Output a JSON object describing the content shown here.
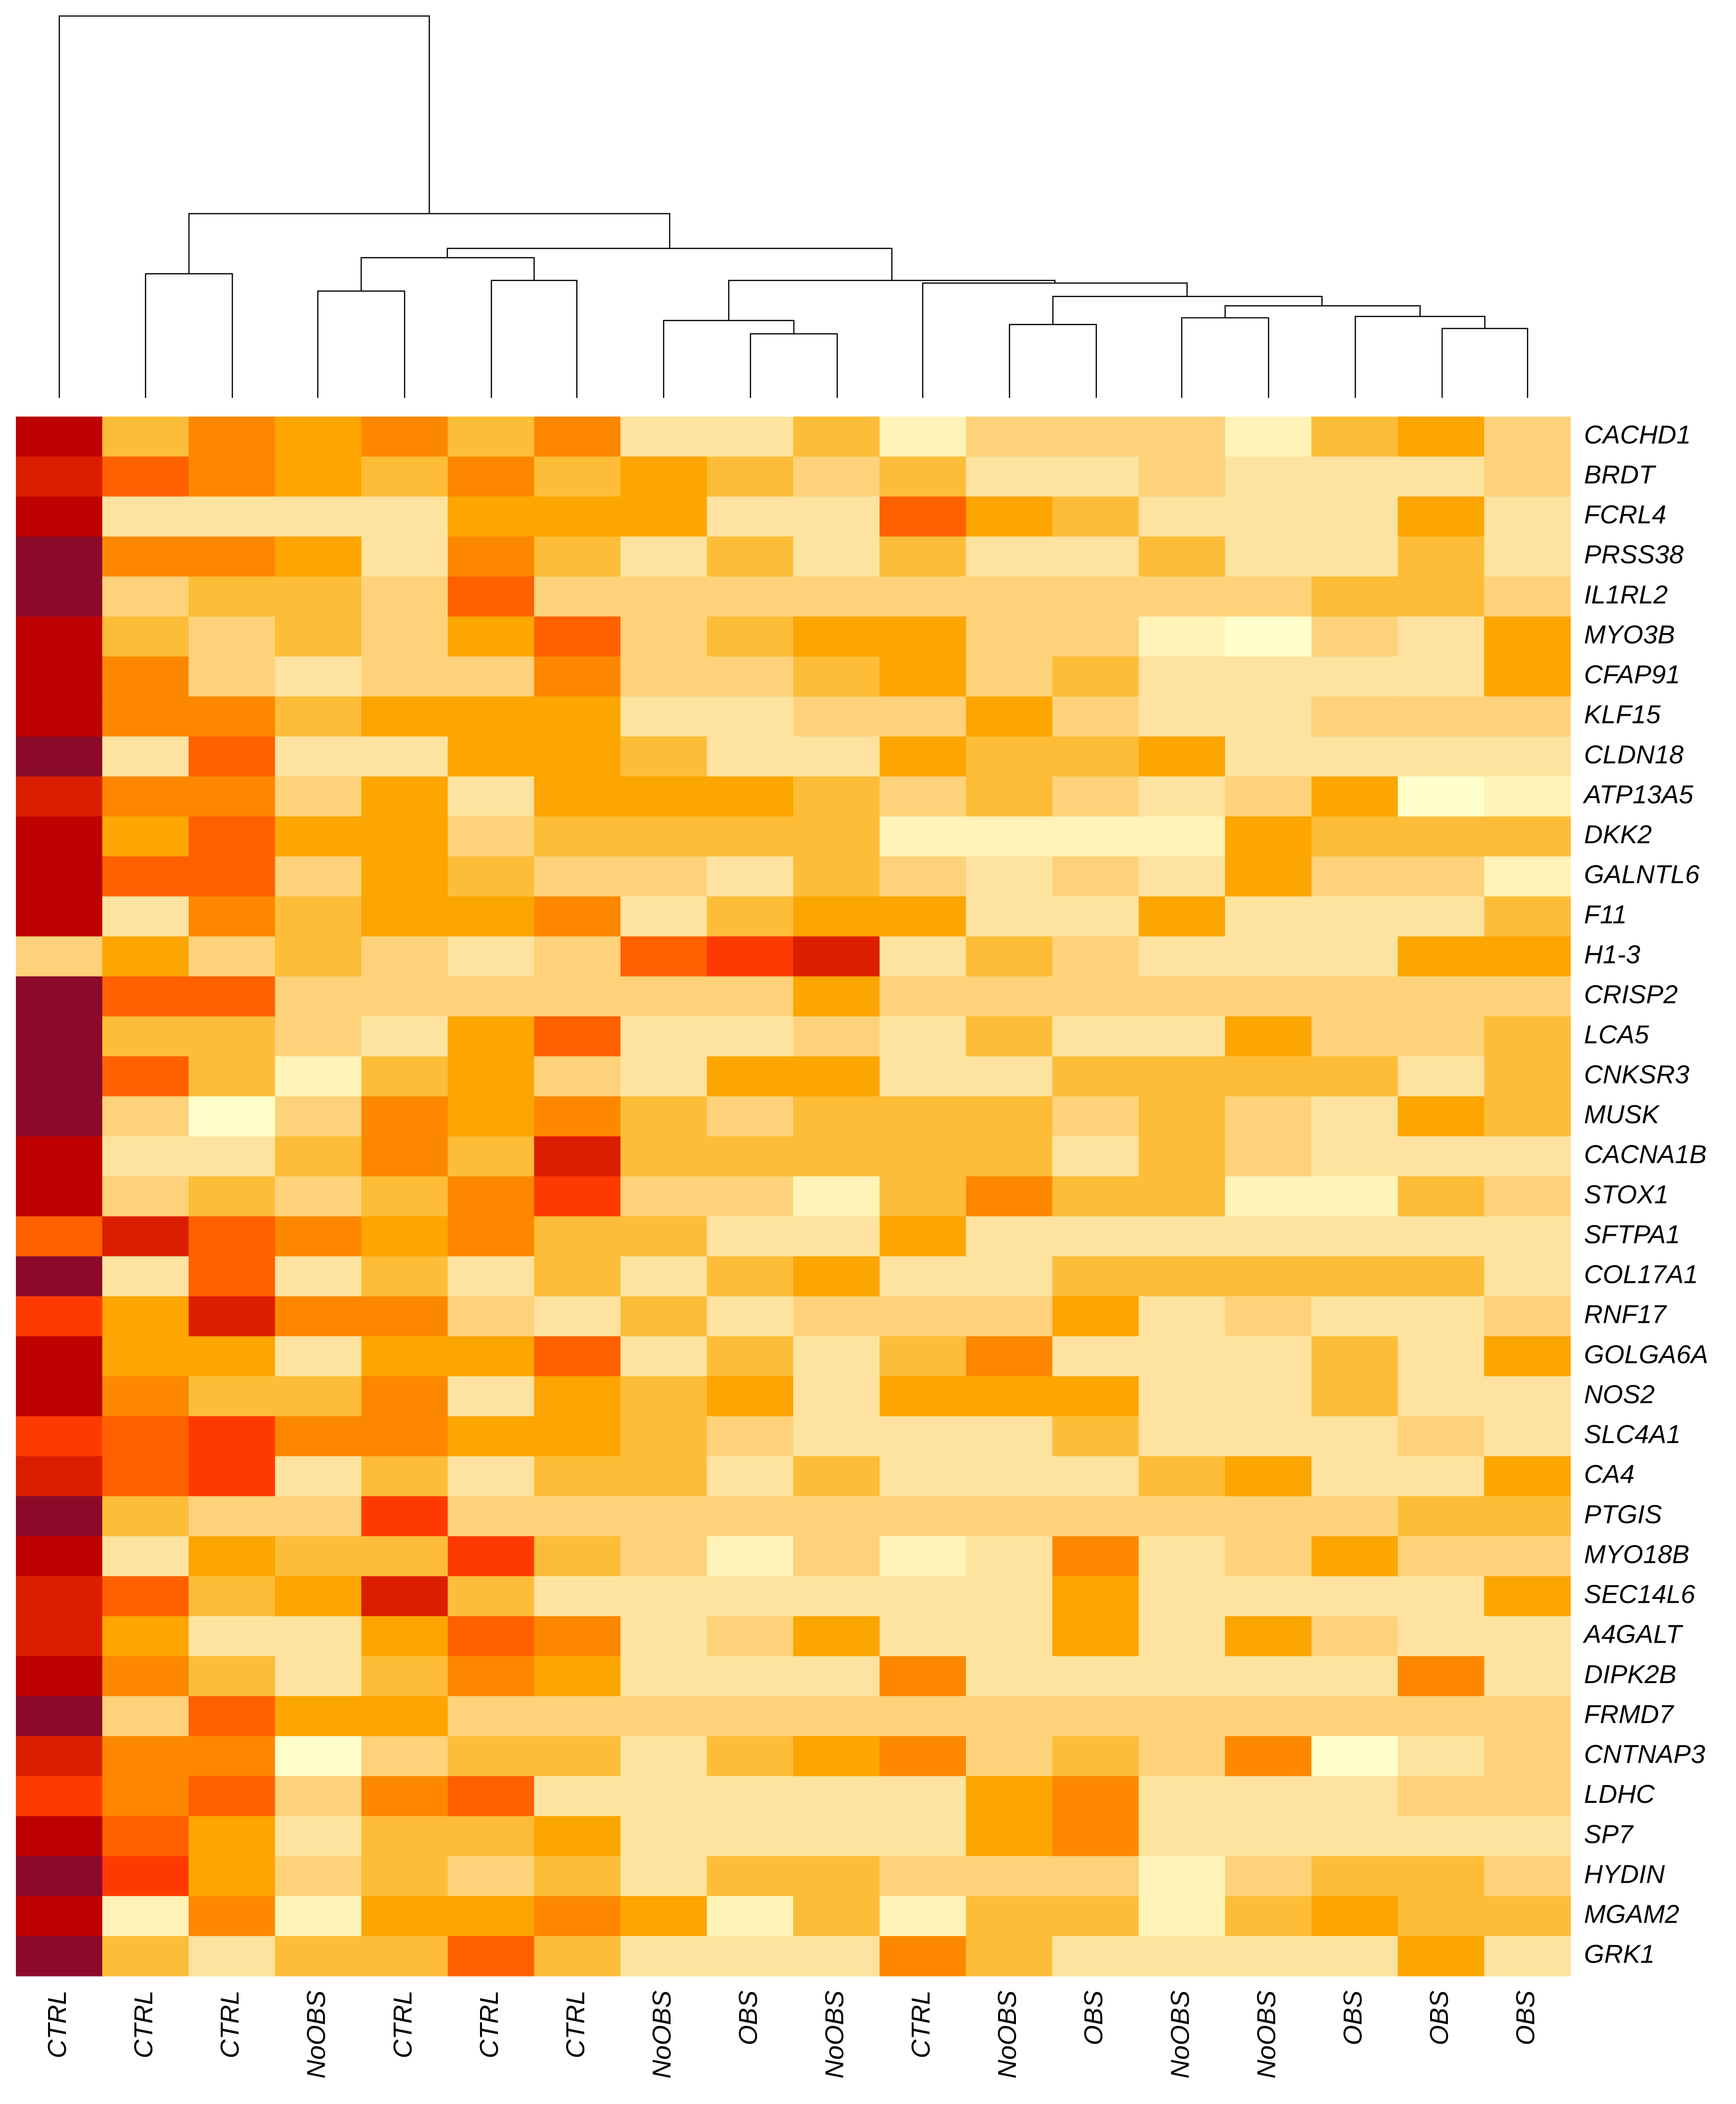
{
  "chart_data": {
    "type": "heatmap",
    "columns": [
      "CTRL",
      "CTRL",
      "CTRL",
      "NoOBS",
      "CTRL",
      "CTRL",
      "CTRL",
      "NoOBS",
      "OBS",
      "NoOBS",
      "CTRL",
      "NoOBS",
      "OBS",
      "NoOBS",
      "NoOBS",
      "OBS",
      "OBS",
      "OBS"
    ],
    "rows": [
      "CACHD1",
      "BRDT",
      "FCRL4",
      "PRSS38",
      "IL1RL2",
      "MYO3B",
      "CFAP91",
      "KLF15",
      "CLDN18",
      "ATP13A5",
      "DKK2",
      "GALNTL6",
      "F11",
      "H1-3",
      "CRISP2",
      "LCA5",
      "CNKSR3",
      "MUSK",
      "CACNA1B",
      "STOX1",
      "SFTPA1",
      "COL17A1",
      "RNF17",
      "GOLGA6A",
      "NOS2",
      "SLC4A1",
      "CA4",
      "PTGIS",
      "MYO18B",
      "SEC14L6",
      "A4GALT",
      "DIPK2B",
      "FRMD7",
      "CNTNAP3",
      "LDHC",
      "SP7",
      "HYDIN",
      "MGAM2",
      "GRK1"
    ],
    "colors": [
      "#FFFFCC",
      "#FFF3B8",
      "#FDE39F",
      "#FDD27A",
      "#FDBD38",
      "#FDA500",
      "#FD8800",
      "#FF6000",
      "#FF3A00",
      "#DC1E00",
      "#BE0000",
      "#8B0A2A"
    ],
    "values": [
      [
        11,
        5,
        7,
        6,
        7,
        5,
        7,
        3,
        3,
        5,
        2,
        4,
        4,
        4,
        2,
        5,
        6,
        4
      ],
      [
        10,
        8,
        7,
        6,
        5,
        7,
        5,
        6,
        5,
        4,
        5,
        3,
        3,
        4,
        3,
        3,
        3,
        4
      ],
      [
        11,
        3,
        3,
        3,
        3,
        6,
        6,
        6,
        3,
        3,
        8,
        6,
        5,
        3,
        3,
        3,
        6,
        3
      ],
      [
        12,
        7,
        7,
        6,
        3,
        7,
        5,
        3,
        5,
        3,
        5,
        3,
        3,
        5,
        3,
        3,
        5,
        3
      ],
      [
        12,
        4,
        5,
        5,
        4,
        8,
        4,
        4,
        4,
        4,
        4,
        4,
        4,
        4,
        4,
        5,
        5,
        4
      ],
      [
        11,
        5,
        4,
        5,
        4,
        6,
        8,
        4,
        5,
        6,
        6,
        4,
        4,
        2,
        1,
        4,
        3,
        6
      ],
      [
        11,
        7,
        4,
        3,
        4,
        4,
        7,
        4,
        4,
        5,
        6,
        4,
        5,
        3,
        3,
        3,
        3,
        6
      ],
      [
        11,
        7,
        7,
        5,
        6,
        6,
        6,
        3,
        3,
        4,
        4,
        6,
        4,
        3,
        3,
        4,
        4,
        4
      ],
      [
        12,
        3,
        8,
        3,
        3,
        6,
        6,
        5,
        3,
        3,
        6,
        5,
        5,
        6,
        3,
        3,
        3,
        3
      ],
      [
        10,
        7,
        7,
        4,
        6,
        3,
        6,
        6,
        6,
        5,
        4,
        5,
        4,
        3,
        4,
        6,
        1,
        2
      ],
      [
        11,
        6,
        8,
        6,
        6,
        4,
        5,
        5,
        5,
        5,
        2,
        2,
        2,
        2,
        6,
        5,
        5,
        5
      ],
      [
        11,
        8,
        8,
        4,
        6,
        5,
        4,
        4,
        3,
        5,
        4,
        3,
        4,
        3,
        6,
        4,
        4,
        2
      ],
      [
        11,
        3,
        7,
        5,
        6,
        6,
        7,
        3,
        5,
        6,
        6,
        3,
        3,
        6,
        3,
        3,
        3,
        5
      ],
      [
        4,
        6,
        4,
        5,
        4,
        3,
        4,
        8,
        9,
        10,
        3,
        5,
        4,
        3,
        3,
        3,
        6,
        6
      ],
      [
        12,
        8,
        8,
        4,
        4,
        4,
        4,
        4,
        4,
        6,
        4,
        4,
        4,
        4,
        4,
        4,
        4,
        4
      ],
      [
        12,
        5,
        5,
        4,
        3,
        6,
        8,
        3,
        3,
        4,
        3,
        5,
        3,
        3,
        6,
        4,
        4,
        5
      ],
      [
        12,
        8,
        5,
        2,
        5,
        6,
        4,
        3,
        6,
        6,
        3,
        3,
        5,
        5,
        5,
        5,
        3,
        5
      ],
      [
        12,
        4,
        1,
        4,
        7,
        6,
        7,
        5,
        4,
        5,
        5,
        5,
        4,
        5,
        4,
        3,
        6,
        5
      ],
      [
        11,
        3,
        3,
        5,
        7,
        5,
        10,
        5,
        5,
        5,
        5,
        5,
        3,
        5,
        4,
        3,
        3,
        3
      ],
      [
        11,
        4,
        5,
        4,
        5,
        7,
        9,
        4,
        4,
        2,
        5,
        7,
        5,
        5,
        2,
        2,
        5,
        4
      ],
      [
        8,
        10,
        8,
        7,
        6,
        7,
        5,
        5,
        3,
        3,
        6,
        3,
        3,
        3,
        3,
        3,
        3,
        3
      ],
      [
        12,
        3,
        8,
        3,
        5,
        3,
        5,
        3,
        5,
        6,
        3,
        3,
        5,
        5,
        5,
        5,
        5,
        3
      ],
      [
        9,
        6,
        10,
        7,
        7,
        4,
        3,
        5,
        3,
        4,
        4,
        4,
        6,
        3,
        4,
        3,
        3,
        4
      ],
      [
        11,
        6,
        6,
        3,
        6,
        6,
        8,
        3,
        5,
        3,
        5,
        7,
        3,
        3,
        3,
        5,
        3,
        6
      ],
      [
        11,
        7,
        5,
        5,
        7,
        3,
        6,
        5,
        6,
        3,
        6,
        6,
        6,
        3,
        3,
        5,
        3,
        3
      ],
      [
        9,
        8,
        9,
        7,
        7,
        6,
        6,
        5,
        4,
        3,
        3,
        3,
        5,
        3,
        3,
        3,
        4,
        3
      ],
      [
        10,
        8,
        9,
        3,
        5,
        3,
        5,
        5,
        3,
        5,
        3,
        3,
        3,
        5,
        6,
        3,
        3,
        6
      ],
      [
        12,
        5,
        4,
        4,
        9,
        4,
        4,
        4,
        4,
        4,
        4,
        4,
        4,
        4,
        4,
        4,
        5,
        5
      ],
      [
        11,
        3,
        6,
        5,
        5,
        9,
        5,
        4,
        2,
        4,
        2,
        3,
        7,
        3,
        4,
        6,
        4,
        4
      ],
      [
        10,
        8,
        5,
        6,
        10,
        5,
        3,
        3,
        3,
        3,
        3,
        3,
        6,
        3,
        3,
        3,
        3,
        6
      ],
      [
        10,
        6,
        3,
        3,
        6,
        8,
        7,
        3,
        4,
        6,
        3,
        3,
        6,
        3,
        6,
        4,
        3,
        3
      ],
      [
        11,
        7,
        5,
        3,
        5,
        7,
        6,
        3,
        3,
        3,
        7,
        3,
        3,
        3,
        3,
        3,
        7,
        3
      ],
      [
        12,
        4,
        8,
        6,
        6,
        4,
        4,
        4,
        4,
        4,
        4,
        4,
        4,
        4,
        4,
        4,
        4,
        4
      ],
      [
        10,
        7,
        7,
        1,
        4,
        5,
        5,
        3,
        5,
        6,
        7,
        4,
        5,
        4,
        7,
        1,
        3,
        4
      ],
      [
        9,
        7,
        8,
        4,
        7,
        8,
        3,
        3,
        3,
        3,
        3,
        6,
        7,
        3,
        3,
        3,
        4,
        4
      ],
      [
        11,
        8,
        6,
        3,
        5,
        5,
        6,
        3,
        3,
        3,
        3,
        6,
        7,
        3,
        3,
        3,
        3,
        3
      ],
      [
        12,
        9,
        6,
        4,
        5,
        4,
        5,
        3,
        5,
        5,
        4,
        4,
        4,
        2,
        4,
        5,
        5,
        4
      ],
      [
        11,
        2,
        7,
        2,
        6,
        6,
        7,
        6,
        2,
        5,
        2,
        5,
        5,
        2,
        5,
        6,
        5,
        5
      ],
      [
        12,
        5,
        3,
        5,
        5,
        8,
        5,
        3,
        3,
        3,
        7,
        5,
        3,
        3,
        3,
        3,
        6,
        3
      ]
    ]
  }
}
